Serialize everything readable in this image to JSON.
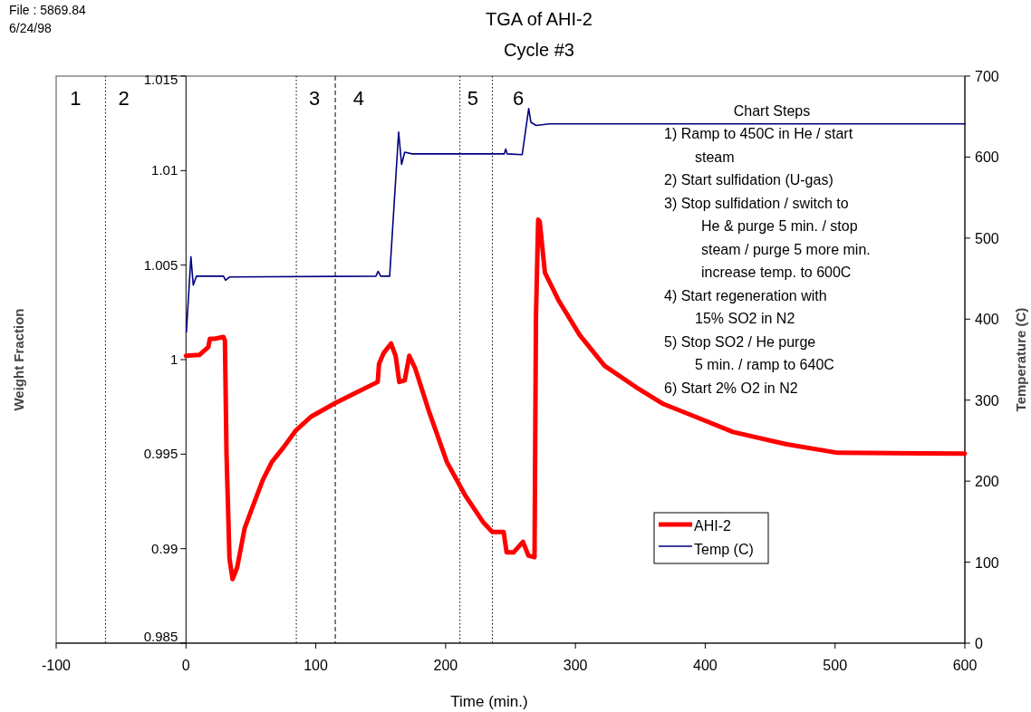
{
  "chart_data": {
    "type": "line",
    "title": "TGA of AHI-2",
    "subtitle": "Cycle #3",
    "xlabel": "Time (min.)",
    "ylabel": "Weight Fraction",
    "y2label": "Temperature (C)",
    "xlim": [
      -100,
      600
    ],
    "xticks": [
      -100,
      0,
      100,
      200,
      300,
      400,
      500,
      600
    ],
    "ylim": [
      0.985,
      1.015
    ],
    "yticks": [
      0.985,
      0.99,
      0.995,
      1,
      1.005,
      1.01,
      1.015
    ],
    "y2lim": [
      0,
      700
    ],
    "y2ticks": [
      0,
      100,
      200,
      300,
      400,
      500,
      600,
      700
    ],
    "legend": "bottom right",
    "grid": false,
    "marker": "none",
    "series": [
      {
        "name": "AHI-2",
        "color": "#ff0000",
        "x": [
          0,
          10.3,
          17.2,
          18.4,
          21.9,
          28.9,
          30,
          31.2,
          33.5,
          35.9,
          39.4,
          45.2,
          52.1,
          59.1,
          66.1,
          75.4,
          84.7,
          96.3,
          114.9,
          128.9,
          147.7,
          148.7,
          152.2,
          158,
          161.5,
          164.3,
          168.5,
          172,
          176.6,
          187,
          201,
          215,
          228.9,
          236,
          244.7,
          247,
          252.3,
          259.6,
          263.8,
          268.5,
          269.6,
          271.3,
          272.5,
          276.5,
          287.3,
          303.3,
          322.5,
          346.3,
          367.8,
          394.9,
          421.4,
          462,
          502,
          600
        ],
        "values": [
          1.0002,
          1.00025,
          1.00066,
          1.0011,
          1.0011,
          1.0012,
          1.001,
          0.99507,
          0.98948,
          0.98839,
          0.989,
          0.99108,
          0.99235,
          0.99362,
          0.99458,
          0.99538,
          0.99626,
          0.99698,
          0.9977,
          0.99818,
          0.99882,
          0.99977,
          1.00034,
          1.00085,
          1.0002,
          0.99882,
          0.9989,
          1.0002,
          0.99953,
          0.9973,
          0.99458,
          0.99283,
          0.9914,
          0.99088,
          0.99088,
          0.9898,
          0.9898,
          0.99036,
          0.98963,
          0.98955,
          1.00225,
          1.0074,
          1.0073,
          1.0046,
          1.0031,
          1.0013,
          0.99967,
          0.99856,
          0.99765,
          0.99691,
          0.99617,
          0.99553,
          0.99507,
          0.99503
        ]
      },
      {
        "name": "Temp (C)",
        "color": "#000080",
        "axis": "y2",
        "x": [
          0.3,
          3.8,
          5.6,
          8,
          28.9,
          30.5,
          33.5,
          146.3,
          148,
          150,
          156.9,
          163.8,
          166.1,
          168.5,
          174.2,
          245.2,
          246.3,
          247.4,
          259,
          264,
          265.7,
          269.8,
          280,
          600
        ],
        "values": [
          384,
          477,
          442,
          453,
          453,
          448,
          452,
          453,
          459,
          453,
          453,
          631,
          591,
          606,
          604,
          604,
          610,
          604,
          603,
          660,
          643,
          639,
          641,
          641
        ]
      }
    ],
    "ref_lines": [
      {
        "axis": "x",
        "value": -62,
        "color": "#000000",
        "line_style": "dotted"
      },
      {
        "axis": "x",
        "value": 85,
        "color": "#000000",
        "line_style": "dotted"
      },
      {
        "axis": "x",
        "value": 115,
        "color": "#000000",
        "line_style": "dashed"
      },
      {
        "axis": "x",
        "value": 211,
        "color": "#000000",
        "line_style": "dotted"
      },
      {
        "axis": "x",
        "value": 236,
        "color": "#000000",
        "line_style": "dotted"
      }
    ],
    "annotations": [
      "File : 5869.84",
      "6/24/98",
      "Chart Steps",
      "1) Ramp to 450C in He / start\nsteam",
      "2) Start sulfidation (U-gas)",
      "3) Stop sulfidation / switch to\nHe & purge 5 min. / stop\nsteam / purge 5 more min.\nincrease temp. to 600C",
      "4) Start regeneration with\n15% SO2 in N2",
      "5) Stop SO2 / He purge\n5 min. / ramp to 640C",
      "6) Start 2% O2 in N2",
      "1",
      "2",
      "3",
      "4",
      "5",
      "6"
    ]
  }
}
